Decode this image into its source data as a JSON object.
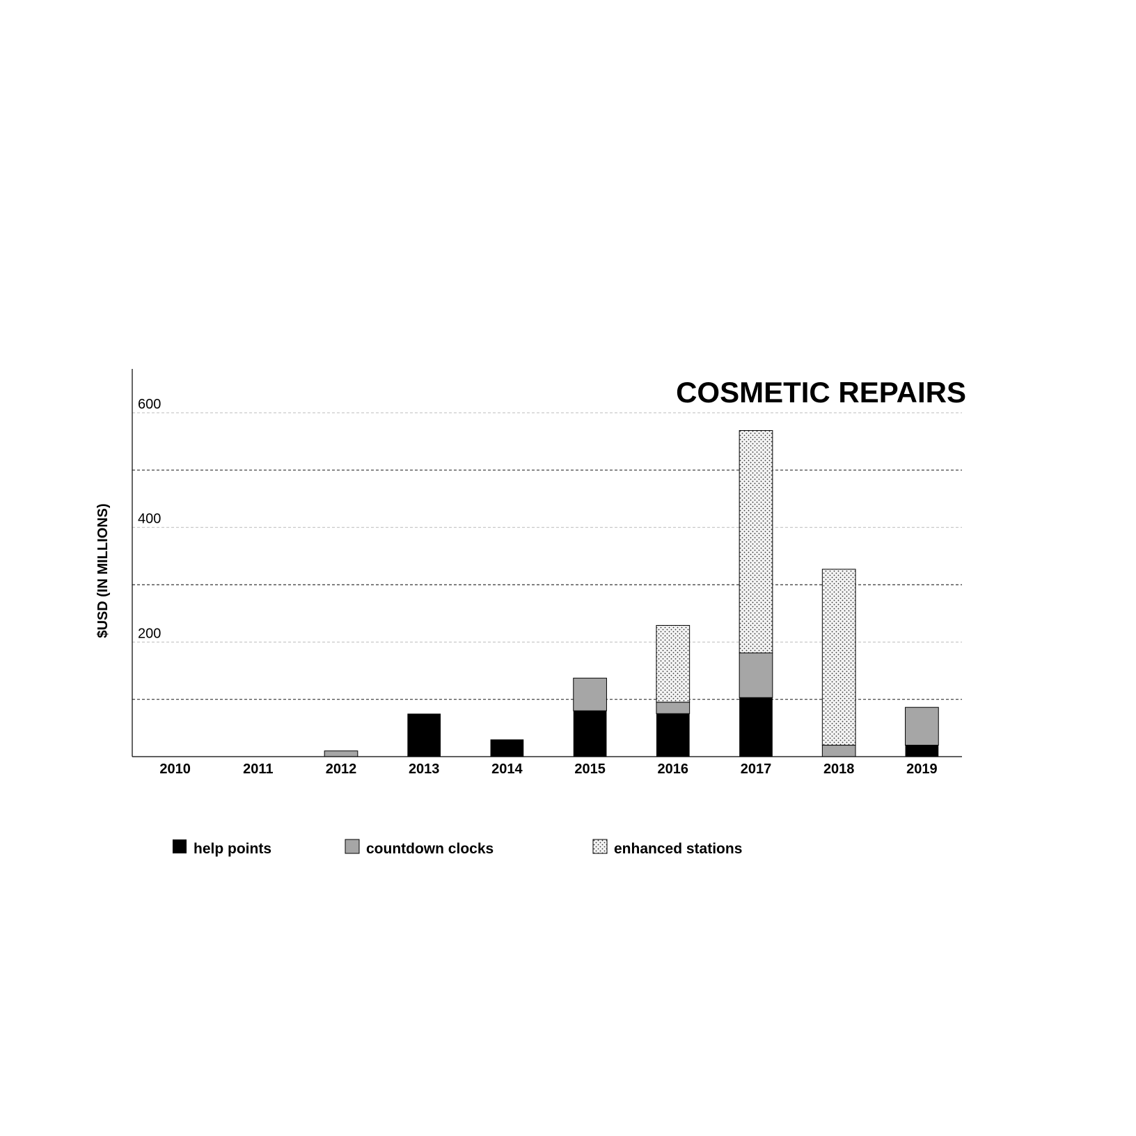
{
  "chart_data": {
    "type": "bar",
    "stacked": true,
    "title": "COSMETIC REPAIRS",
    "xlabel": "",
    "ylabel": "$USD (IN MILLIONS)",
    "ylim": [
      0,
      600
    ],
    "yticks": [
      200,
      400,
      600
    ],
    "categories": [
      "2010",
      "2011",
      "2012",
      "2013",
      "2014",
      "2015",
      "2016",
      "2017",
      "2018",
      "2019"
    ],
    "series": [
      {
        "name": "help points",
        "color": "#000000",
        "pattern": "solid",
        "values": [
          0,
          0,
          0,
          75,
          30,
          80,
          75,
          103,
          0,
          20
        ]
      },
      {
        "name": "countdown clocks",
        "color": "#a6a6a6",
        "pattern": "solid",
        "values": [
          0,
          0,
          10,
          0,
          0,
          57,
          20,
          78,
          20,
          66
        ]
      },
      {
        "name": "enhanced stations",
        "color": "#f2f2f2",
        "pattern": "dots",
        "values": [
          0,
          0,
          0,
          0,
          0,
          0,
          134,
          388,
          307,
          0
        ]
      }
    ],
    "grid": true,
    "legend_position": "bottom"
  }
}
